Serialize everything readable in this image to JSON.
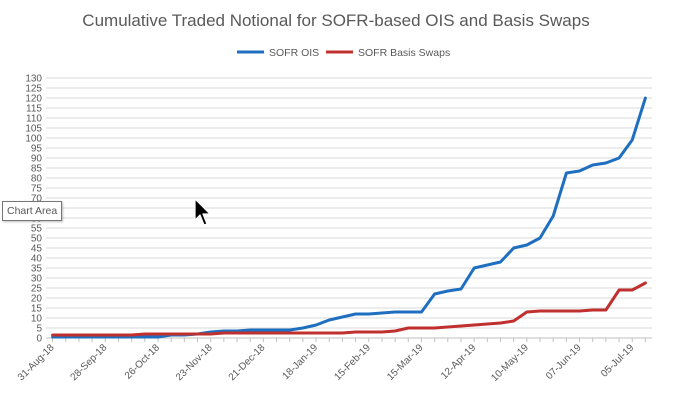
{
  "chart_data": {
    "type": "line",
    "title": "Cumulative Traded Notional for SOFR-based OIS and Basis Swaps",
    "xlabel": "",
    "ylabel": "",
    "ylim": [
      0,
      130
    ],
    "ytick_step": 5,
    "grid": true,
    "legend_position": "top",
    "x_tick_labels": [
      "31-Aug-18",
      "28-Sep-18",
      "26-Oct-18",
      "23-Nov-18",
      "21-Dec-18",
      "18-Jan-19",
      "15-Feb-19",
      "15-Mar-19",
      "12-Apr-19",
      "10-May-19",
      "07-Jun-19",
      "05-Jul-19"
    ],
    "x": [
      "31-Aug-18",
      "07-Sep-18",
      "14-Sep-18",
      "21-Sep-18",
      "28-Sep-18",
      "05-Oct-18",
      "12-Oct-18",
      "19-Oct-18",
      "26-Oct-18",
      "02-Nov-18",
      "09-Nov-18",
      "16-Nov-18",
      "23-Nov-18",
      "30-Nov-18",
      "07-Dec-18",
      "14-Dec-18",
      "21-Dec-18",
      "28-Dec-18",
      "04-Jan-19",
      "11-Jan-19",
      "18-Jan-19",
      "25-Jan-19",
      "01-Feb-19",
      "08-Feb-19",
      "15-Feb-19",
      "22-Feb-19",
      "01-Mar-19",
      "08-Mar-19",
      "15-Mar-19",
      "22-Mar-19",
      "29-Mar-19",
      "05-Apr-19",
      "12-Apr-19",
      "19-Apr-19",
      "26-Apr-19",
      "03-May-19",
      "10-May-19",
      "17-May-19",
      "24-May-19",
      "31-May-19",
      "07-Jun-19",
      "14-Jun-19",
      "21-Jun-19",
      "28-Jun-19",
      "05-Jul-19",
      "12-Jul-19"
    ],
    "series": [
      {
        "name": "SOFR OIS",
        "color": "#1f6fc1",
        "values": [
          0.5,
          0.5,
          0.5,
          0.5,
          0.5,
          0.5,
          0.5,
          0.5,
          0.5,
          1.5,
          1.5,
          2.0,
          3.0,
          3.5,
          3.5,
          4.0,
          4.0,
          4.0,
          4.0,
          5.0,
          6.5,
          9.0,
          10.5,
          12.0,
          12.0,
          12.5,
          13.0,
          13.0,
          13.0,
          22.0,
          23.5,
          24.5,
          35.0,
          36.5,
          38.0,
          45.0,
          46.5,
          50.0,
          61.0,
          82.5,
          83.5,
          86.5,
          87.5,
          90.0,
          99.0,
          120.0
        ]
      },
      {
        "name": "SOFR Basis Swaps",
        "color": "#c0302f",
        "values": [
          1.5,
          1.5,
          1.5,
          1.5,
          1.5,
          1.5,
          1.5,
          2.0,
          2.0,
          2.0,
          2.0,
          2.0,
          2.0,
          2.5,
          2.5,
          2.5,
          2.5,
          2.5,
          2.5,
          2.5,
          2.5,
          2.5,
          2.5,
          3.0,
          3.0,
          3.0,
          3.5,
          5.0,
          5.0,
          5.0,
          5.5,
          6.0,
          6.5,
          7.0,
          7.5,
          8.5,
          13.0,
          13.5,
          13.5,
          13.5,
          13.5,
          14.0,
          14.0,
          24.0,
          24.0,
          27.5
        ]
      }
    ]
  },
  "overlay": {
    "tooltip_text": "Chart Area"
  }
}
